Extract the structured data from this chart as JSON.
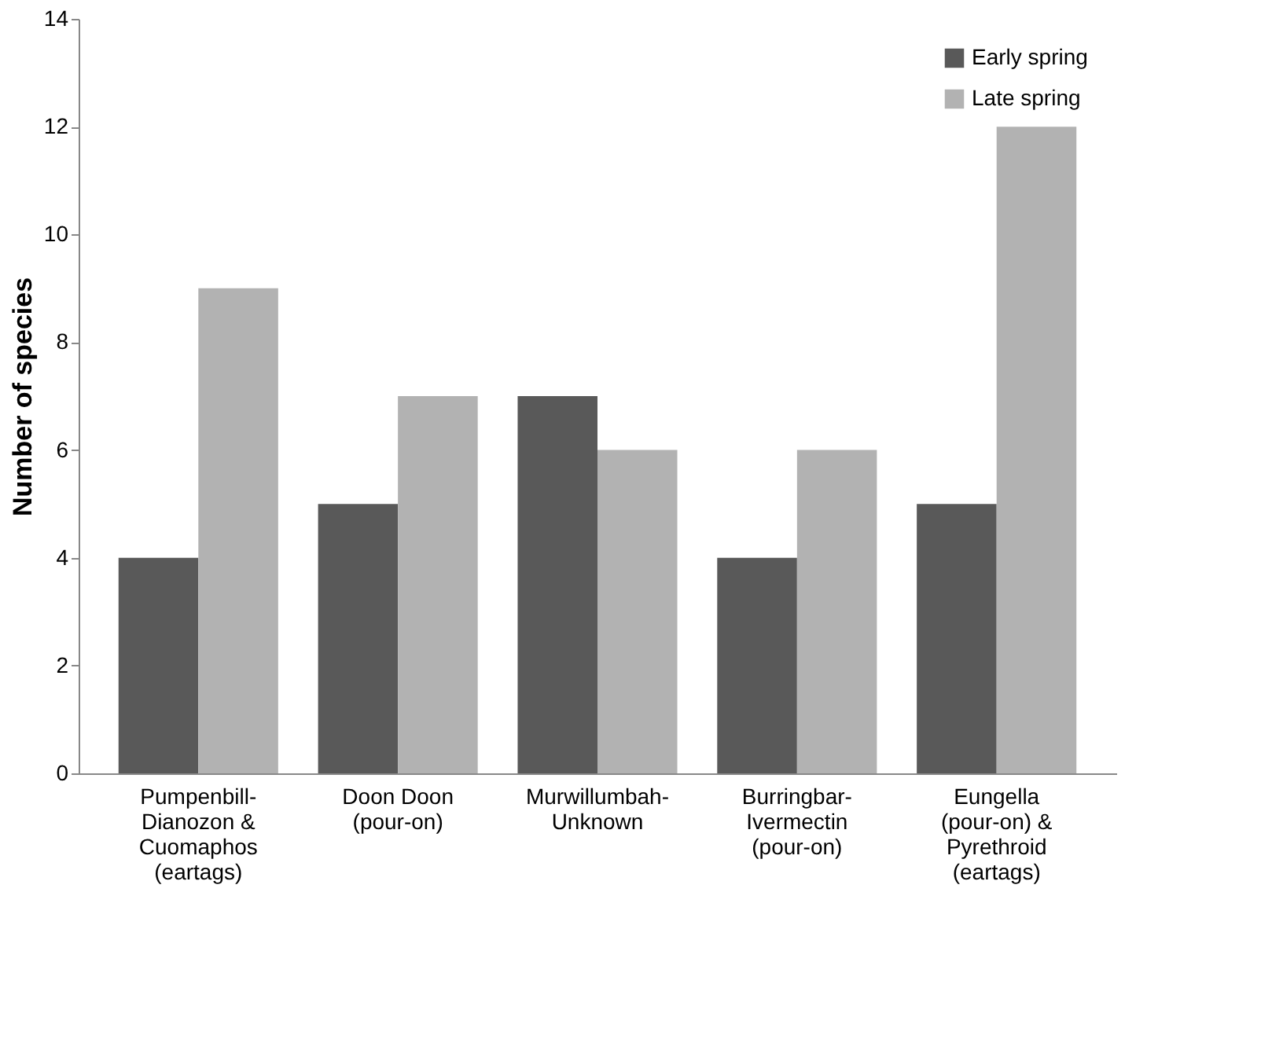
{
  "chart_data": {
    "type": "bar",
    "ylabel": "Number of species",
    "categories": [
      "Pumpenbill-Dianozon & Cuomaphos (eartags)",
      "Doon Doon (pour-on)",
      "Murwillumbah-Unknown",
      "Burringbar-Ivermectin (pour-on)",
      "Eungella (pour-on) & Pyrethroid (eartags)"
    ],
    "series": [
      {
        "name": "Early spring",
        "color": "#595959",
        "values": [
          4,
          5,
          7,
          4,
          5
        ]
      },
      {
        "name": "Late spring",
        "color": "#b2b2b2",
        "values": [
          9,
          7,
          6,
          6,
          12
        ]
      }
    ],
    "ylim": [
      0,
      14
    ],
    "yticks": [
      0,
      2,
      4,
      6,
      8,
      10,
      12,
      14
    ],
    "grid": false,
    "legend": "top right"
  }
}
